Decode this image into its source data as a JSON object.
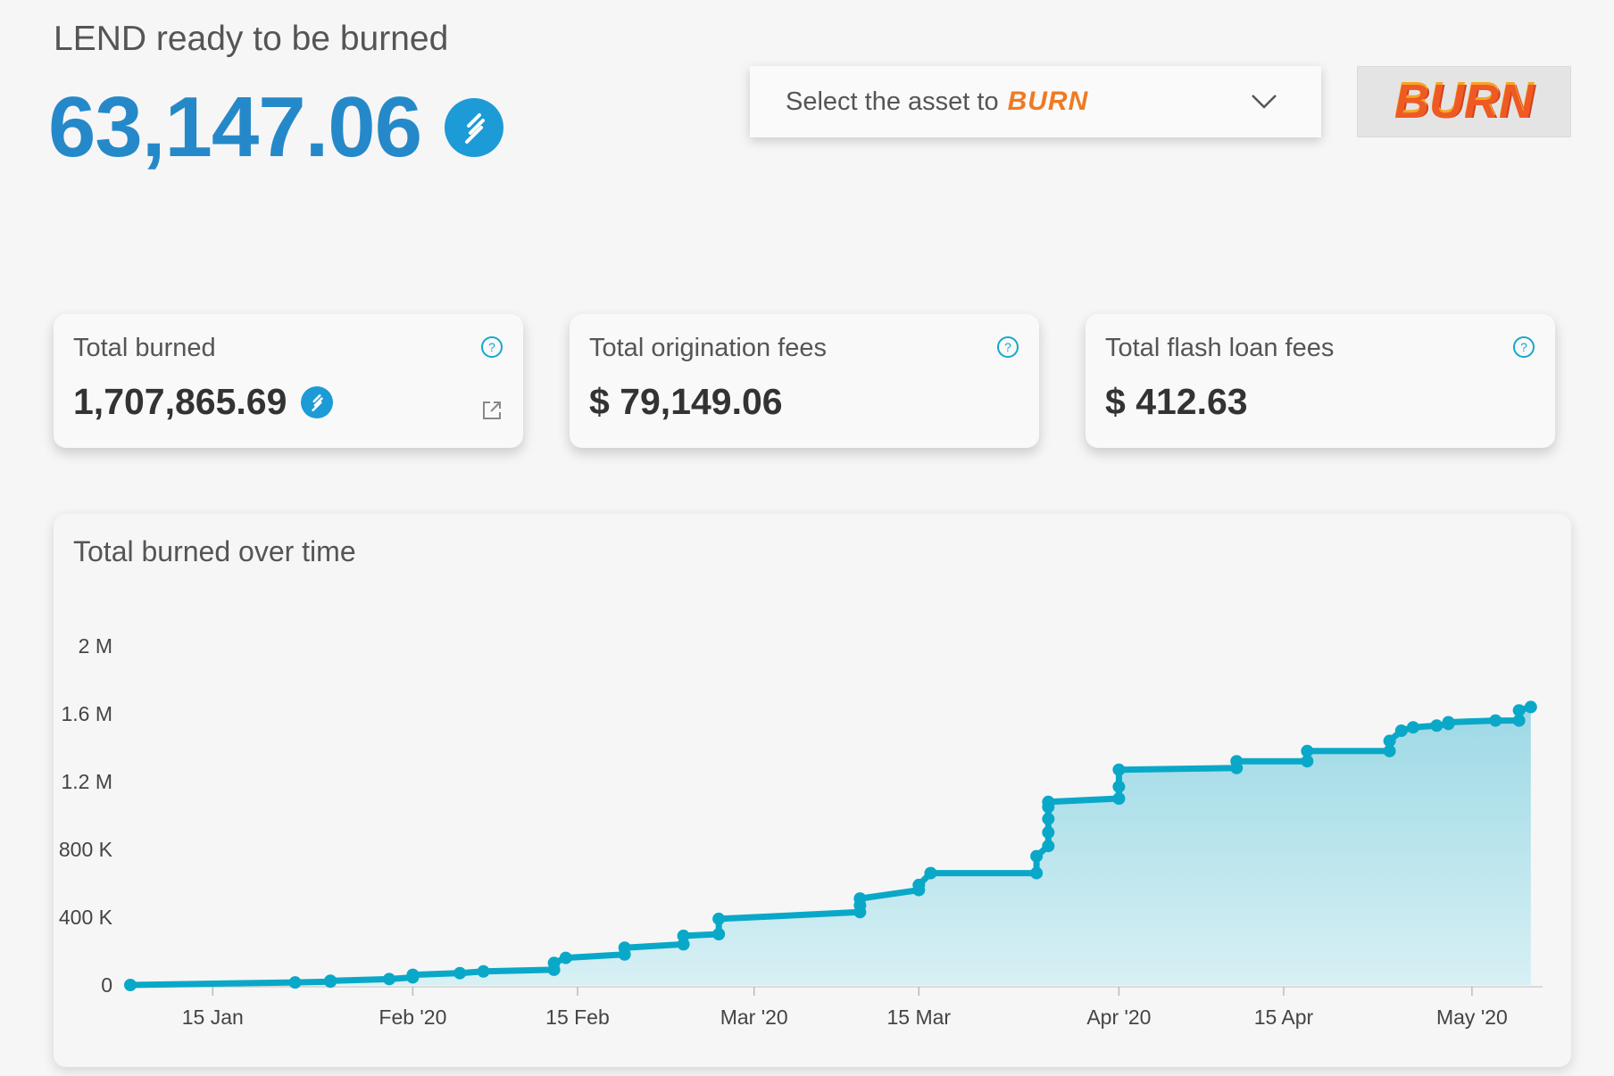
{
  "header": {
    "title": "LEND ready to be burned",
    "amount": "63,147.06"
  },
  "select": {
    "prefix": "Select the asset to",
    "burn_word": "BURN"
  },
  "burn_button": {
    "label": "BURN"
  },
  "cards": [
    {
      "label": "Total burned",
      "value": "1,707,865.69"
    },
    {
      "label": "Total origination fees",
      "value": "$ 79,149.06"
    },
    {
      "label": "Total flash loan fees",
      "value": "$ 412.63"
    }
  ],
  "colors": {
    "accent": "#2589c9",
    "line": "#0aa8c8",
    "burn": "#ef5a24"
  },
  "icons": [
    "lend-token-icon",
    "help-icon",
    "external-link-icon",
    "chevron-down-icon"
  ],
  "chart_title": "Total burned over time",
  "chart_data": {
    "type": "area",
    "xlabel": "",
    "ylabel": "",
    "x_tick_labels": [
      "15 Jan",
      "Feb '20",
      "15 Feb",
      "Mar '20",
      "15 Mar",
      "Apr '20",
      "15 Apr",
      "May '20"
    ],
    "x_ticks": [
      "2020-01-15",
      "2020-02-01",
      "2020-02-15",
      "2020-03-01",
      "2020-03-15",
      "2020-04-01",
      "2020-04-15",
      "2020-05-01"
    ],
    "y_tick_labels": [
      "0",
      "400 K",
      "800 K",
      "1.2 M",
      "1.6 M",
      "2 M"
    ],
    "y_ticks": [
      0,
      400000,
      800000,
      1200000,
      1600000,
      2000000
    ],
    "xlim": [
      "2020-01-08",
      "2020-05-07"
    ],
    "ylim": [
      0,
      2000000
    ],
    "series": [
      {
        "x": [
          "2020-01-08",
          "2020-01-22",
          "2020-01-25",
          "2020-01-25",
          "2020-01-30",
          "2020-02-01",
          "2020-02-01",
          "2020-02-05",
          "2020-02-07",
          "2020-02-13",
          "2020-02-13",
          "2020-02-14",
          "2020-02-19",
          "2020-02-19",
          "2020-02-24",
          "2020-02-24",
          "2020-02-27",
          "2020-02-27",
          "2020-03-10",
          "2020-03-10",
          "2020-03-10",
          "2020-03-15",
          "2020-03-15",
          "2020-03-16",
          "2020-03-25",
          "2020-03-25",
          "2020-03-26",
          "2020-03-26",
          "2020-03-26",
          "2020-03-26",
          "2020-03-26",
          "2020-04-01",
          "2020-04-01",
          "2020-04-01",
          "2020-04-11",
          "2020-04-11",
          "2020-04-17",
          "2020-04-17",
          "2020-04-24",
          "2020-04-24",
          "2020-04-25",
          "2020-04-26",
          "2020-04-28",
          "2020-04-29",
          "2020-04-29",
          "2020-05-03",
          "2020-05-05",
          "2020-05-05",
          "2020-05-06"
        ],
        "y": [
          0,
          15000,
          20000,
          25000,
          35000,
          45000,
          60000,
          70000,
          80000,
          90000,
          130000,
          160000,
          180000,
          220000,
          240000,
          290000,
          300000,
          390000,
          430000,
          470000,
          510000,
          560000,
          590000,
          660000,
          660000,
          760000,
          820000,
          900000,
          980000,
          1050000,
          1080000,
          1100000,
          1170000,
          1270000,
          1280000,
          1320000,
          1320000,
          1380000,
          1380000,
          1440000,
          1500000,
          1520000,
          1530000,
          1540000,
          1550000,
          1560000,
          1560000,
          1620000,
          1640000
        ]
      }
    ]
  }
}
